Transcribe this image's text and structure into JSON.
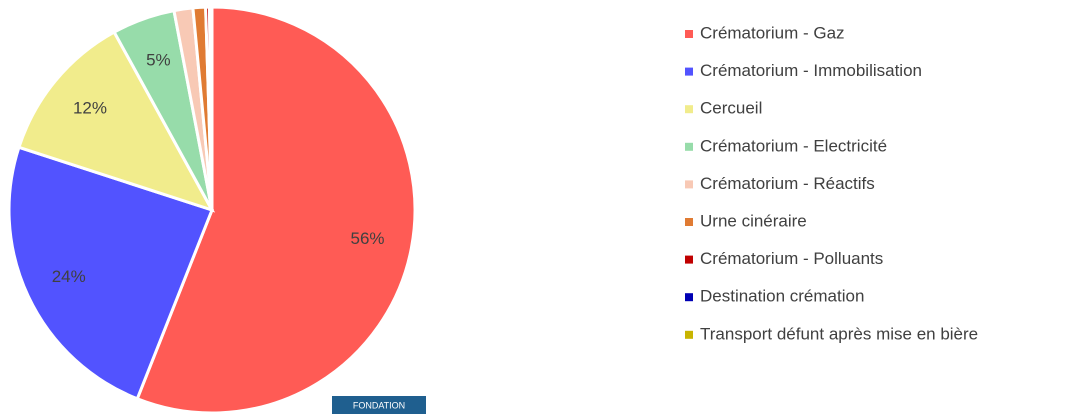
{
  "chart_data": {
    "type": "pie",
    "categories": [
      "Crématorium - Gaz",
      "Crématorium - Immobilisation",
      "Cercueil",
      "Crématorium - Electricité",
      "Crématorium - Réactifs",
      "Urne cinéraire",
      "Crématorium - Polluants",
      "Destination crémation",
      "Transport défunt après mise en bière"
    ],
    "values": [
      56,
      24,
      12,
      5,
      1.5,
      1,
      0.3,
      0.1,
      0.1
    ],
    "value_labels": [
      "56%",
      "24%",
      "12%",
      "5%",
      null,
      null,
      null,
      null,
      null
    ],
    "colors": [
      "#ff5b55",
      "#5253ff",
      "#f1ec8c",
      "#97dcaa",
      "#f8c9b5",
      "#e07b33",
      "#c00000",
      "#0000b4",
      "#c8b400"
    ],
    "legend": "right"
  },
  "logo": "FONDATION"
}
